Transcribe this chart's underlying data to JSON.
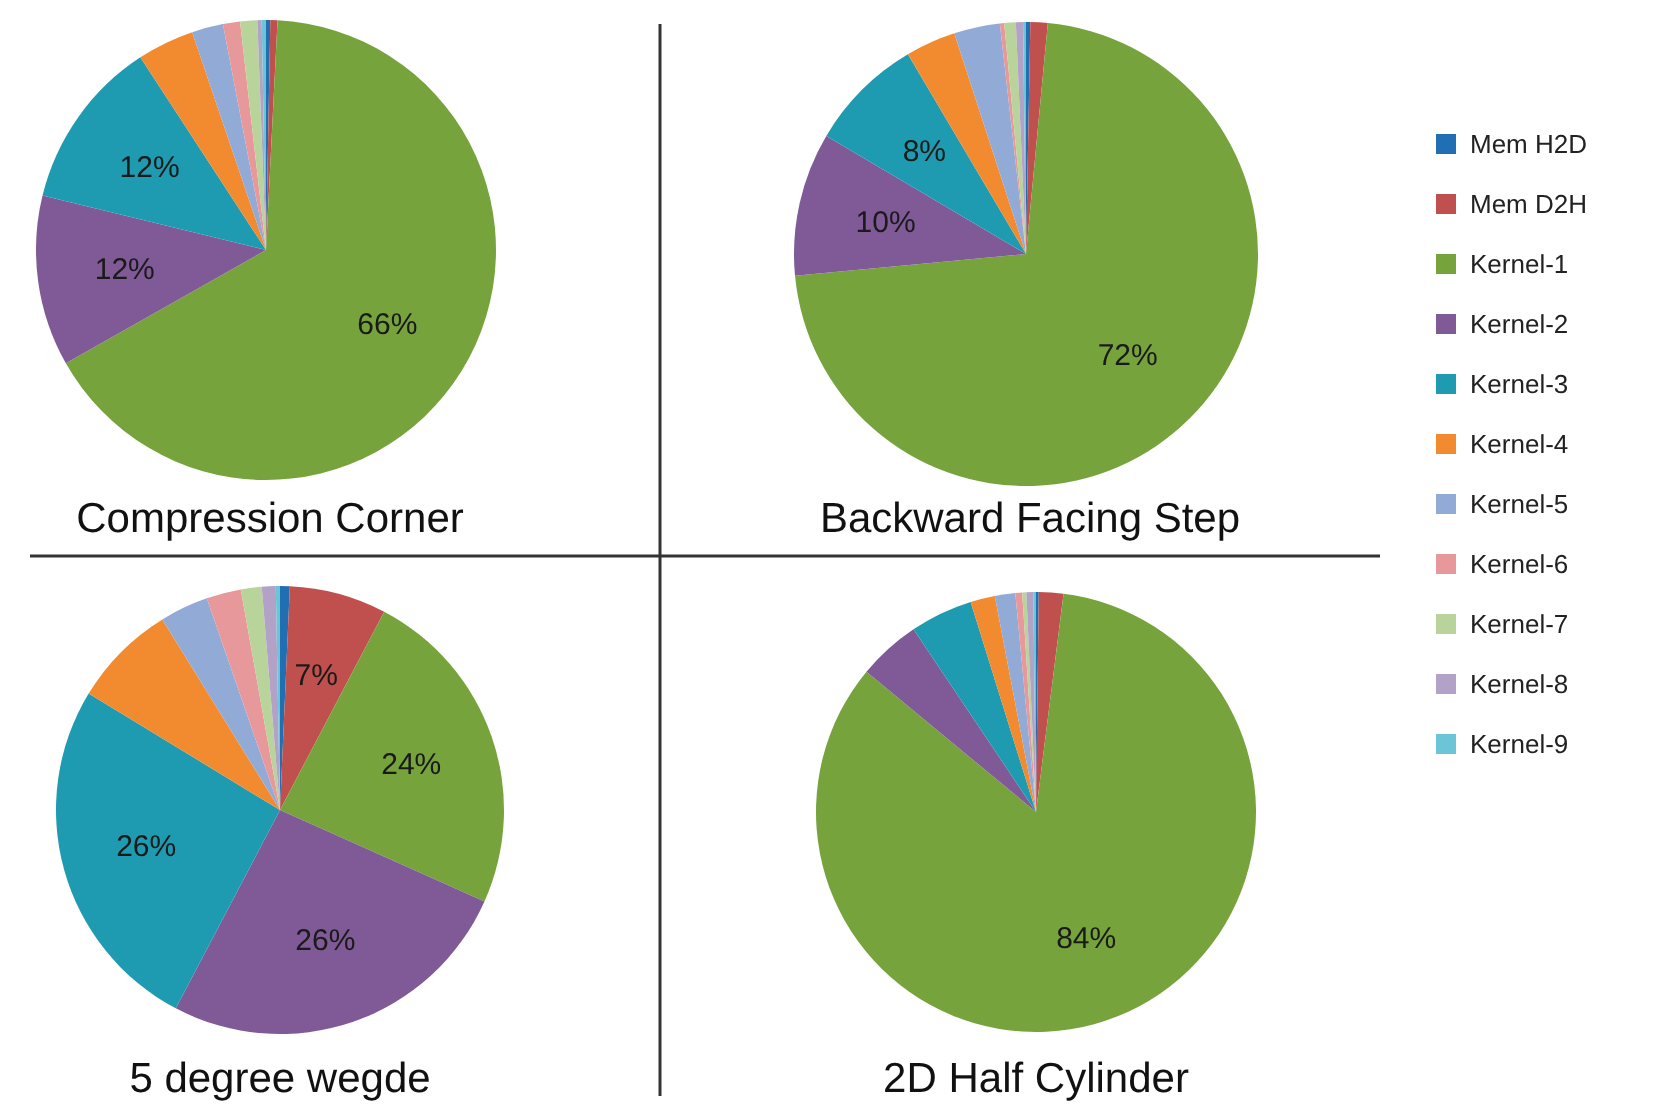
{
  "chart_data": [
    {
      "type": "pie",
      "title": "Compression Corner",
      "legend": "right",
      "categories": [
        "Mem H2D",
        "Mem D2H",
        "Kernel-1",
        "Kernel-2",
        "Kernel-3",
        "Kernel-4",
        "Kernel-5",
        "Kernel-6",
        "Kernel-7",
        "Kernel-8",
        "Kernel-9"
      ],
      "colors": [
        "#1f6fb2",
        "#c0504d",
        "#77a33c",
        "#7f5a96",
        "#1e9bb0",
        "#f28a30",
        "#92aad6",
        "#e6989a",
        "#b8d49a",
        "#b3a2c7",
        "#6cc5d6"
      ],
      "values": [
        0.3,
        0.5,
        66,
        12,
        12,
        4,
        2.2,
        1.2,
        1.2,
        0.3,
        0.3
      ],
      "value_labels": [
        null,
        null,
        "66%",
        "12%",
        "12%",
        null,
        null,
        null,
        null,
        null,
        null
      ]
    },
    {
      "type": "pie",
      "title": "Backward Facing Step",
      "categories": [
        null,
        null,
        null,
        null,
        null,
        null,
        null,
        null,
        null,
        null,
        null
      ],
      "colors": [
        "#1f6fb2",
        "#c0504d",
        "#77a33c",
        "#7f5a96",
        "#1e9bb0",
        "#f28a30",
        "#92aad6",
        "#e6989a",
        "#b8d49a",
        "#b3a2c7",
        "#6cc5d6"
      ],
      "values": [
        0.3,
        1.2,
        72,
        10,
        8,
        3.5,
        3.2,
        0.3,
        0.8,
        0.5,
        0.2
      ],
      "value_labels": [
        null,
        null,
        "72%",
        "10%",
        "8%",
        null,
        null,
        null,
        null,
        null,
        null
      ]
    },
    {
      "type": "pie",
      "title": "5 degree wegde",
      "categories": [
        null,
        null,
        null,
        null,
        null,
        null,
        null,
        null,
        null,
        null,
        null
      ],
      "colors": [
        "#1f6fb2",
        "#c0504d",
        "#77a33c",
        "#7f5a96",
        "#1e9bb0",
        "#f28a30",
        "#92aad6",
        "#e6989a",
        "#b8d49a",
        "#b3a2c7",
        "#6cc5d6"
      ],
      "values": [
        0.7,
        7,
        24,
        26,
        26,
        7.5,
        3.5,
        2.5,
        1.5,
        1,
        0.3
      ],
      "value_labels": [
        null,
        "7%",
        "24%",
        "26%",
        "26%",
        null,
        null,
        null,
        null,
        null,
        null
      ]
    },
    {
      "type": "pie",
      "title": "2D Half Cylinder",
      "categories": [
        null,
        null,
        null,
        null,
        null,
        null,
        null,
        null,
        null,
        null,
        null
      ],
      "colors": [
        "#1f6fb2",
        "#c0504d",
        "#77a33c",
        "#7f5a96",
        "#1e9bb0",
        "#f28a30",
        "#92aad6",
        "#e6989a",
        "#b8d49a",
        "#b3a2c7",
        "#6cc5d6"
      ],
      "values": [
        0.2,
        1.8,
        84,
        4.6,
        4.6,
        1.8,
        1.5,
        0.5,
        0.3,
        0.5,
        0.2
      ],
      "value_labels": [
        null,
        null,
        "84%",
        null,
        null,
        null,
        null,
        null,
        null,
        null,
        null
      ]
    }
  ]
}
